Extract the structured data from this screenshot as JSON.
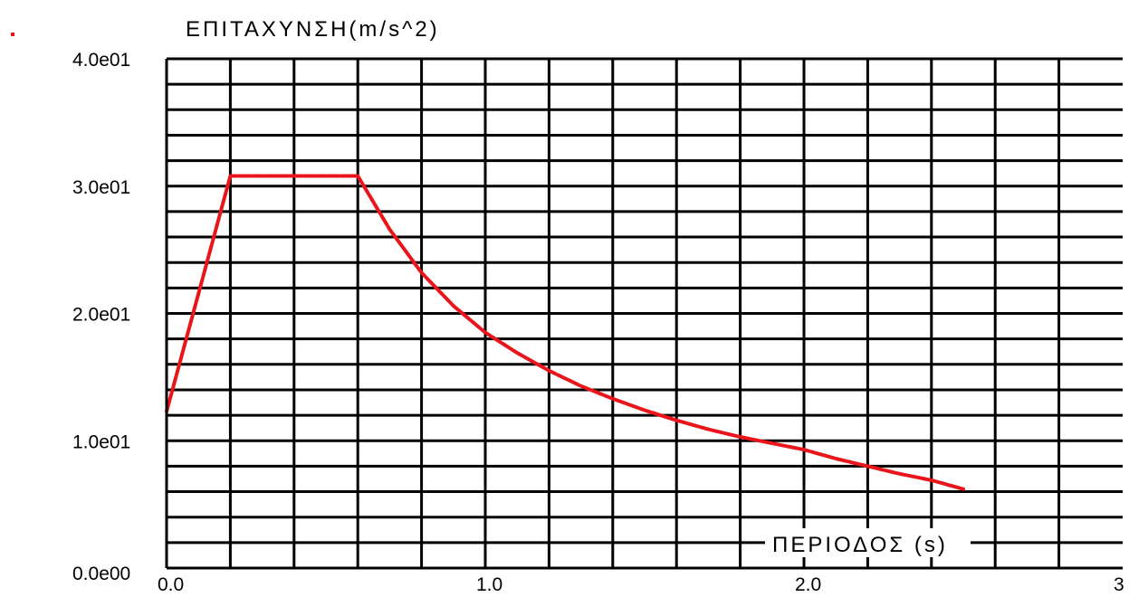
{
  "chart_data": {
    "type": "line",
    "y_axis_title": "ΕΠΙΤΑΧΥΝΣΗ(m/s^2)",
    "x_axis_title": "ΠΕΡΙΟΔΟΣ (s)",
    "xlim": [
      0,
      3
    ],
    "ylim": [
      0,
      40
    ],
    "x_ticks": [
      {
        "value": 0,
        "label": "0.0"
      },
      {
        "value": 1,
        "label": "1.0"
      },
      {
        "value": 2,
        "label": "2.0"
      },
      {
        "value": 3,
        "label": "3"
      }
    ],
    "y_ticks": [
      {
        "value": 0,
        "label": "0.0e00"
      },
      {
        "value": 10,
        "label": "1.0e01"
      },
      {
        "value": 20,
        "label": "2.0e01"
      },
      {
        "value": 30,
        "label": "3.0e01"
      },
      {
        "value": 40,
        "label": "4.0e01"
      }
    ],
    "grid": true,
    "x_grid_step": 0.2,
    "y_grid_step": 2,
    "grid_color": "#000000",
    "series": [
      {
        "color": "#e8151a",
        "points": [
          [
            0.0,
            12.3
          ],
          [
            0.2,
            30.8
          ],
          [
            0.6,
            30.8
          ],
          [
            0.7,
            26.6
          ],
          [
            0.8,
            23.2
          ],
          [
            0.9,
            20.6
          ],
          [
            1.0,
            18.5
          ],
          [
            1.1,
            16.9
          ],
          [
            1.2,
            15.5
          ],
          [
            1.3,
            14.3
          ],
          [
            1.4,
            13.3
          ],
          [
            1.5,
            12.4
          ],
          [
            1.6,
            11.6
          ],
          [
            1.7,
            10.9
          ],
          [
            1.8,
            10.3
          ],
          [
            1.9,
            9.8
          ],
          [
            2.0,
            9.3
          ],
          [
            2.1,
            8.6
          ],
          [
            2.2,
            8.0
          ],
          [
            2.3,
            7.4
          ],
          [
            2.4,
            6.9
          ],
          [
            2.5,
            6.2
          ]
        ]
      }
    ]
  }
}
